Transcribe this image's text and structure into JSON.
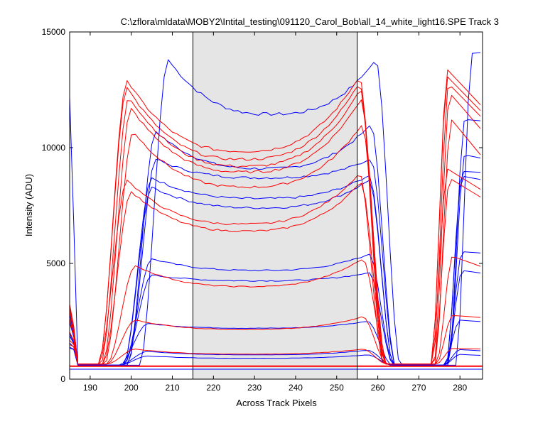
{
  "chart_data": {
    "type": "line",
    "title": "C:\\zflora\\mldata\\MOBY2\\Intital_testing\\091120_Carol_Bob\\all_14_white_light16.SPE    Track 3",
    "xlabel": "Across Track Pixels",
    "ylabel": "Intensity (ADU)",
    "xlim": [
      185,
      285.5
    ],
    "ylim": [
      0,
      15000
    ],
    "xticks": [
      190,
      200,
      210,
      220,
      230,
      240,
      250,
      260,
      270,
      280
    ],
    "yticks": [
      0,
      5000,
      10000,
      15000
    ],
    "grid": false,
    "shaded_region": {
      "x": [
        215,
        255
      ],
      "color": "#e5e5e5"
    },
    "vertical_lines": [
      215,
      255
    ],
    "horizontal_lines": [
      {
        "y": 560,
        "color": "#ff0000"
      },
      {
        "y": 430,
        "color": "#0000ff"
      }
    ],
    "colors": {
      "blue": "#0000ff",
      "red": "#ff0000",
      "axis": "#000000",
      "shade": "#e5e5e5"
    },
    "red_series": [
      {
        "left_knee": 199,
        "peak": 12900,
        "mid": 9850,
        "right_peak": 13100,
        "right_end": 11850,
        "base": 650
      },
      {
        "left_knee": 199,
        "peak": 12600,
        "mid": 9500,
        "right_peak": 12800,
        "right_end": 11600,
        "base": 650
      },
      {
        "left_knee": 199.5,
        "peak": 12200,
        "mid": 9200,
        "right_peak": 12500,
        "right_end": 11300,
        "base": 650
      },
      {
        "left_knee": 200,
        "peak": 11700,
        "mid": 8950,
        "right_peak": 12100,
        "right_end": 10700,
        "base": 650
      },
      {
        "left_knee": 200.5,
        "peak": 10700,
        "mid": 8300,
        "right_peak": 11000,
        "right_end": 9500,
        "base": 650
      },
      {
        "left_knee": 199,
        "peak": 8600,
        "mid": 6700,
        "right_peak": 8900,
        "right_end": 8200,
        "base": 650
      },
      {
        "left_knee": 200,
        "peak": 8100,
        "mid": 6400,
        "right_peak": 8500,
        "right_end": 7800,
        "base": 650
      },
      {
        "left_knee": 201,
        "peak": 4900,
        "mid": 4000,
        "right_peak": 5200,
        "right_end": 4800,
        "base": 650
      },
      {
        "left_knee": 201,
        "peak": 2550,
        "mid": 2150,
        "right_peak": 2700,
        "right_end": 2650,
        "base": 650
      },
      {
        "left_knee": 201,
        "peak": 1300,
        "mid": 1080,
        "right_peak": 1300,
        "right_end": 1300,
        "base": 650
      }
    ],
    "blue_series": [
      {
        "left_knee": 209,
        "peak": 13800,
        "mid": 11450,
        "right_peak": 13800,
        "right_end": 14200,
        "base": 600
      },
      {
        "left_knee": 206,
        "peak": 10700,
        "mid": 9100,
        "right_peak": 11000,
        "right_end": 11100,
        "base": 600
      },
      {
        "left_knee": 206,
        "peak": 9500,
        "mid": 8700,
        "right_peak": 9500,
        "right_end": 9400,
        "base": 600
      },
      {
        "left_knee": 205,
        "peak": 8700,
        "mid": 7800,
        "right_peak": 8800,
        "right_end": 8900,
        "base": 600
      },
      {
        "left_knee": 205,
        "peak": 8300,
        "mid": 7400,
        "right_peak": 8600,
        "right_end": 8500,
        "base": 600
      },
      {
        "left_knee": 205,
        "peak": 5200,
        "mid": 4700,
        "right_peak": 5400,
        "right_end": 5400,
        "base": 600
      },
      {
        "left_knee": 205,
        "peak": 4500,
        "mid": 4250,
        "right_peak": 4600,
        "right_end": 4500,
        "base": 600
      },
      {
        "left_knee": 204,
        "peak": 2400,
        "mid": 2200,
        "right_peak": 2500,
        "right_end": 2450,
        "base": 600
      },
      {
        "left_knee": 204,
        "peak": 1200,
        "mid": 1050,
        "right_peak": 1250,
        "right_end": 1200,
        "base": 600
      },
      {
        "left_knee": 204,
        "peak": 1000,
        "mid": 900,
        "right_peak": 1050,
        "right_end": 1000,
        "base": 600
      }
    ]
  }
}
